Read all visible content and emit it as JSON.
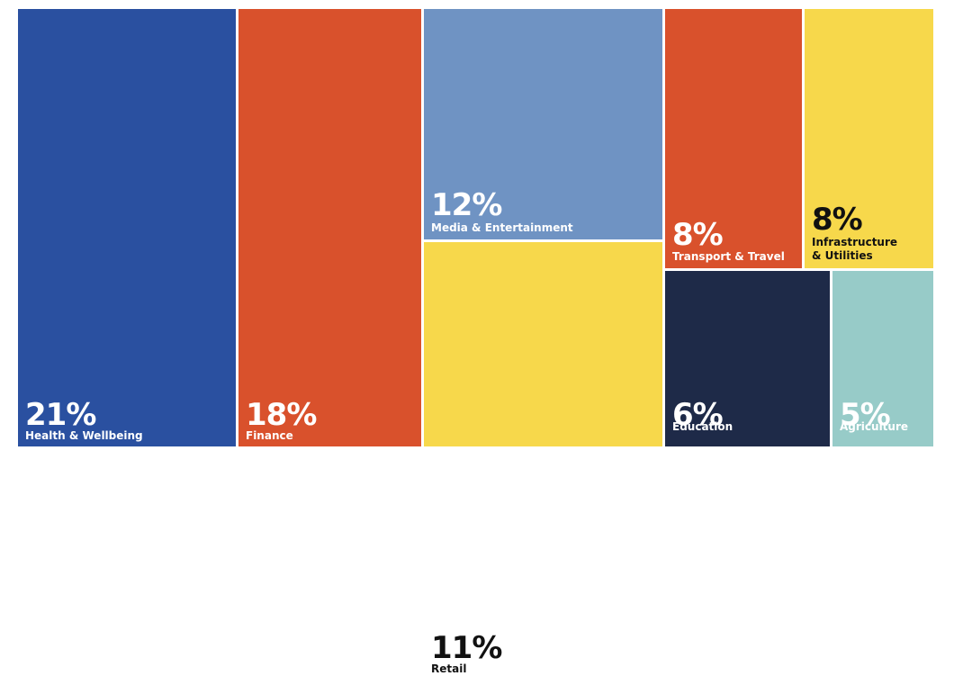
{
  "chart_data": {
    "type": "treemap",
    "title": "",
    "items": [
      {
        "value": 21,
        "percent_label": "21%",
        "label": "Health & Wellbeing",
        "color": "#2a50a0",
        "text_color": "#ffffff"
      },
      {
        "value": 18,
        "percent_label": "18%",
        "label": "Finance",
        "color": "#d9512c",
        "text_color": "#ffffff"
      },
      {
        "value": 12,
        "percent_label": "12%",
        "label": "Media & Entertainment",
        "color": "#6f93c3",
        "text_color": "#ffffff"
      },
      {
        "value": 11,
        "percent_label": "11%",
        "label": "Retail",
        "color": "#f7d84b",
        "text_color": "#111111"
      },
      {
        "value": 8,
        "percent_label": "8%",
        "label": "Transport & Travel",
        "color": "#d9512c",
        "text_color": "#ffffff"
      },
      {
        "value": 8,
        "percent_label": "8%",
        "label": "Infrastructure\n& Utilities",
        "color": "#f7d84b",
        "text_color": "#111111"
      },
      {
        "value": 6,
        "percent_label": "6%",
        "label": "Education",
        "color": "#1e2a48",
        "text_color": "#ffffff"
      },
      {
        "value": 5,
        "percent_label": "5%",
        "label": "Agriculture",
        "color": "#97cbc8",
        "text_color": "#ffffff"
      }
    ]
  }
}
